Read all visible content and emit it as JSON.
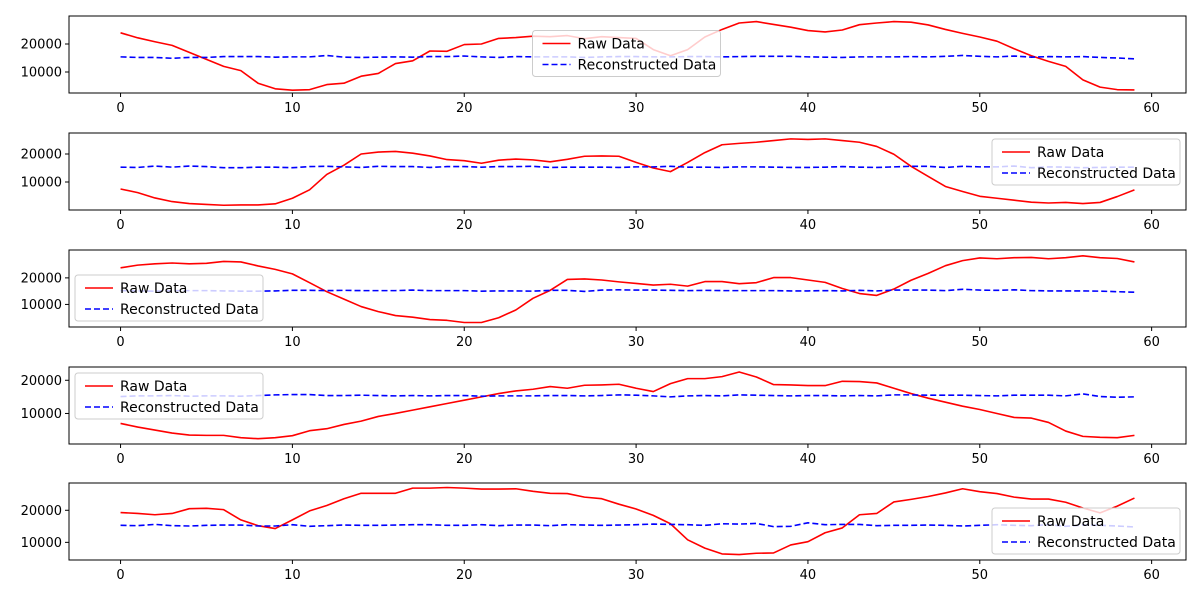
{
  "chart_data": [
    {
      "type": "line",
      "xlim": [
        -3,
        62
      ],
      "ylim": [
        2500,
        30000
      ],
      "xticks": [
        0,
        10,
        20,
        30,
        40,
        50,
        60
      ],
      "yticks": [
        10000,
        20000
      ],
      "legend": "center",
      "series": [
        {
          "name": "Raw Data",
          "color": "#ff0000",
          "style": "solid",
          "values": [
            24000,
            22200,
            20800,
            19500,
            17000,
            14500,
            12000,
            10500,
            6000,
            4000,
            3500,
            3700,
            5500,
            6000,
            8500,
            9500,
            13000,
            14000,
            17500,
            17400,
            19800,
            20000,
            22000,
            22300,
            22800,
            22600,
            23000,
            21900,
            22600,
            22300,
            22000,
            18000,
            15800,
            18000,
            22500,
            25200,
            27500,
            28000,
            27000,
            26000,
            24800,
            24300,
            25000,
            26900,
            27500,
            28000,
            27800,
            26800,
            25200,
            23800,
            22500,
            21000,
            18300,
            15800,
            13800,
            12000,
            7200,
            4600,
            3700,
            3600
          ]
        },
        {
          "name": "Reconstructed Data",
          "color": "#0000ff",
          "style": "dashed",
          "values": [
            15400,
            15200,
            15200,
            14900,
            15200,
            15200,
            15500,
            15500,
            15500,
            15300,
            15400,
            15400,
            15900,
            15300,
            15200,
            15300,
            15400,
            15300,
            15500,
            15500,
            15700,
            15400,
            15200,
            15500,
            15400,
            15400,
            15400,
            15200,
            15400,
            15500,
            15500,
            15400,
            15400,
            15500,
            15500,
            15400,
            15500,
            15600,
            15600,
            15600,
            15400,
            15300,
            15200,
            15400,
            15400,
            15400,
            15500,
            15400,
            15600,
            15900,
            15600,
            15400,
            15700,
            15300,
            15500,
            15400,
            15500,
            15200,
            15000,
            14700
          ]
        }
      ]
    },
    {
      "type": "line",
      "xlim": [
        -3,
        62
      ],
      "ylim": [
        0,
        27500
      ],
      "xticks": [
        0,
        10,
        20,
        30,
        40,
        50,
        60
      ],
      "yticks": [
        10000,
        20000
      ],
      "legend": "upper right",
      "series": [
        {
          "name": "Raw Data",
          "color": "#ff0000",
          "style": "solid",
          "values": [
            7500,
            6200,
            4300,
            3000,
            2300,
            2000,
            1700,
            1800,
            1800,
            2200,
            4200,
            7200,
            12700,
            16000,
            20000,
            20700,
            20900,
            20300,
            19300,
            18000,
            17600,
            16700,
            17800,
            18200,
            17900,
            17200,
            18100,
            19200,
            19300,
            19200,
            17000,
            15000,
            13700,
            17000,
            20500,
            23300,
            23800,
            24200,
            24800,
            25400,
            25200,
            25400,
            24800,
            24200,
            22700,
            19900,
            15600,
            12000,
            8400,
            6600,
            4900,
            4200,
            3500,
            2800,
            2500,
            2700,
            2300,
            2700,
            4800,
            7200
          ]
        },
        {
          "name": "Reconstructed Data",
          "color": "#0000ff",
          "style": "dashed",
          "values": [
            15300,
            15200,
            15700,
            15300,
            15700,
            15500,
            15100,
            15100,
            15300,
            15300,
            15100,
            15500,
            15600,
            15400,
            15200,
            15600,
            15500,
            15500,
            15200,
            15500,
            15500,
            15300,
            15500,
            15500,
            15600,
            15200,
            15300,
            15300,
            15300,
            15200,
            15400,
            15400,
            15600,
            15300,
            15300,
            15200,
            15400,
            15400,
            15300,
            15200,
            15200,
            15300,
            15500,
            15300,
            15200,
            15400,
            15600,
            15600,
            15200,
            15600,
            15400,
            15400,
            15700,
            15100,
            15400,
            15300,
            15100,
            15200,
            15300,
            15300
          ]
        }
      ]
    },
    {
      "type": "line",
      "xlim": [
        -3,
        62
      ],
      "ylim": [
        1500,
        30500
      ],
      "xticks": [
        0,
        10,
        20,
        30,
        40,
        50,
        60
      ],
      "yticks": [
        10000,
        20000
      ],
      "legend": "lower left",
      "series": [
        {
          "name": "Raw Data",
          "color": "#ff0000",
          "style": "solid",
          "values": [
            23800,
            24800,
            25300,
            25600,
            25300,
            25500,
            26200,
            26000,
            24500,
            23200,
            21500,
            18200,
            14800,
            12000,
            9200,
            7300,
            5800,
            5200,
            4300,
            4000,
            3200,
            3200,
            5000,
            7900,
            12300,
            15300,
            19400,
            19600,
            19200,
            18500,
            17900,
            17300,
            17600,
            16900,
            18600,
            18600,
            17800,
            18200,
            20100,
            20100,
            19200,
            18300,
            16000,
            14100,
            13400,
            15800,
            19100,
            21700,
            24600,
            26500,
            27500,
            27200,
            27600,
            27700,
            27200,
            27600,
            28300,
            27600,
            27300,
            26000
          ]
        },
        {
          "name": "Reconstructed Data",
          "color": "#0000ff",
          "style": "dashed",
          "values": [
            15200,
            15100,
            15000,
            15200,
            15200,
            15200,
            15100,
            15000,
            15000,
            15100,
            15300,
            15300,
            15200,
            15300,
            15200,
            15200,
            15200,
            15400,
            15200,
            15200,
            15200,
            15000,
            15100,
            15100,
            15000,
            15300,
            15300,
            14900,
            15400,
            15500,
            15400,
            15400,
            15300,
            15200,
            15300,
            15200,
            15200,
            15200,
            15200,
            15100,
            15100,
            15200,
            15100,
            15300,
            15100,
            15400,
            15400,
            15400,
            15200,
            15700,
            15400,
            15300,
            15500,
            15200,
            15100,
            15100,
            15100,
            15000,
            14800,
            14600
          ]
        }
      ]
    },
    {
      "type": "line",
      "xlim": [
        -3,
        62
      ],
      "ylim": [
        800,
        24000
      ],
      "xticks": [
        0,
        10,
        20,
        30,
        40,
        50,
        60
      ],
      "yticks": [
        10000,
        20000
      ],
      "legend": "upper left",
      "series": [
        {
          "name": "Raw Data",
          "color": "#ff0000",
          "style": "solid",
          "values": [
            7000,
            5900,
            5000,
            4100,
            3500,
            3400,
            3400,
            2700,
            2400,
            2700,
            3300,
            4800,
            5400,
            6700,
            7700,
            9100,
            10000,
            11000,
            12000,
            13000,
            14000,
            15000,
            16000,
            16800,
            17300,
            18100,
            17600,
            18500,
            18600,
            18800,
            17600,
            16600,
            19000,
            20500,
            20500,
            21100,
            22500,
            21000,
            18700,
            18600,
            18400,
            18400,
            19700,
            19600,
            19200,
            17600,
            16000,
            14600,
            13400,
            12200,
            11200,
            10000,
            8800,
            8600,
            7300,
            4700,
            3100,
            2800,
            2700,
            3400
          ]
        },
        {
          "name": "Reconstructed Data",
          "color": "#0000ff",
          "style": "dashed",
          "values": [
            15100,
            15300,
            15300,
            15400,
            15200,
            15300,
            15300,
            15200,
            15400,
            15600,
            15700,
            15700,
            15400,
            15400,
            15500,
            15400,
            15300,
            15400,
            15300,
            15400,
            15400,
            15200,
            15300,
            15300,
            15300,
            15400,
            15400,
            15300,
            15400,
            15600,
            15500,
            15300,
            15000,
            15300,
            15400,
            15300,
            15600,
            15500,
            15400,
            15300,
            15400,
            15400,
            15300,
            15400,
            15300,
            15600,
            15600,
            15500,
            15500,
            15500,
            15400,
            15300,
            15500,
            15500,
            15500,
            15300,
            15900,
            15100,
            14900,
            15000
          ]
        }
      ]
    },
    {
      "type": "line",
      "xlim": [
        -3,
        62
      ],
      "ylim": [
        4500,
        28500
      ],
      "xticks": [
        0,
        10,
        20,
        30,
        40,
        50,
        60
      ],
      "yticks": [
        10000,
        20000
      ],
      "legend": "lower right",
      "series": [
        {
          "name": "Raw Data",
          "color": "#ff0000",
          "style": "solid",
          "values": [
            19300,
            19000,
            18600,
            19000,
            20500,
            20600,
            20200,
            17000,
            15200,
            14300,
            17000,
            19800,
            21500,
            23600,
            25300,
            25300,
            25300,
            26900,
            26900,
            27100,
            26900,
            26600,
            26600,
            26700,
            25900,
            25300,
            25200,
            24100,
            23600,
            21900,
            20400,
            18400,
            15800,
            10800,
            8200,
            6400,
            6200,
            6600,
            6700,
            9200,
            10200,
            13000,
            14500,
            18600,
            19000,
            22600,
            23400,
            24300,
            25400,
            26700,
            25800,
            25200,
            24100,
            23500,
            23500,
            22500,
            20700,
            19200,
            21300,
            23800
          ]
        },
        {
          "name": "Reconstructed Data",
          "color": "#0000ff",
          "style": "dashed",
          "values": [
            15300,
            15200,
            15600,
            15200,
            15100,
            15300,
            15400,
            15400,
            15100,
            15100,
            15500,
            15000,
            15200,
            15400,
            15300,
            15300,
            15400,
            15500,
            15500,
            15300,
            15300,
            15500,
            15200,
            15400,
            15400,
            15200,
            15500,
            15400,
            15300,
            15400,
            15500,
            15700,
            15600,
            15500,
            15300,
            15800,
            15700,
            15900,
            14900,
            15000,
            16100,
            15500,
            15600,
            15600,
            15200,
            15300,
            15300,
            15400,
            15300,
            15100,
            15300,
            15500,
            15300,
            15200,
            15500,
            15000,
            15400,
            15300,
            15100,
            14800
          ]
        }
      ]
    }
  ]
}
